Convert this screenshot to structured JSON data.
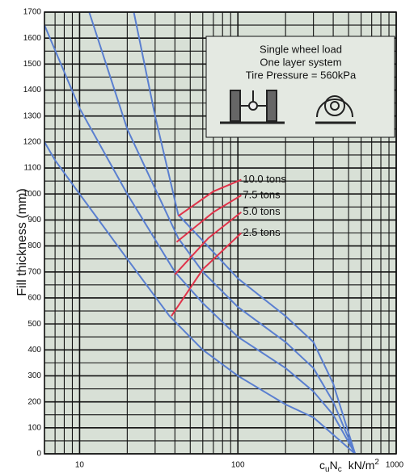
{
  "chart_data": {
    "type": "line",
    "ylabel": "Fill thickness (mm)",
    "xlabel": [
      "c",
      "u",
      "N",
      "c",
      "kN/m",
      "2"
    ],
    "annotation": [
      "Single wheel load",
      "One layer system",
      "Tire Pressure = 560kPa"
    ],
    "log_x": true,
    "xlim": [
      6,
      1000
    ],
    "ylim": [
      0,
      1700
    ],
    "xticks": [
      10,
      100,
      1000
    ],
    "xgrid": [
      6,
      7,
      8,
      9,
      20,
      30,
      40,
      50,
      60,
      70,
      80,
      90,
      200,
      300,
      400,
      500,
      600,
      700,
      800,
      900
    ],
    "yticks": [
      0,
      100,
      200,
      300,
      400,
      500,
      600,
      700,
      800,
      900,
      1000,
      1100,
      1200,
      1300,
      1400,
      1500,
      1600,
      1700
    ],
    "ygrid": [
      50,
      150,
      250,
      350,
      450,
      550,
      650,
      750,
      850,
      950,
      1050,
      1150,
      1250,
      1350,
      1450,
      1550,
      1650
    ],
    "grid": true,
    "series": [
      {
        "name": "10.0 tons",
        "color": "#5a7fd0",
        "x": [
          22,
          30,
          42,
          60,
          100,
          200,
          300,
          400,
          550
        ],
        "y": [
          1700,
          1300,
          920,
          820,
          675,
          530,
          430,
          270,
          0
        ],
        "label_line": {
          "color": "#e0334a",
          "x": [
            42,
            70,
            105
          ],
          "y": [
            915,
            1010,
            1055
          ]
        }
      },
      {
        "name": "7.5 tons",
        "color": "#5a7fd0",
        "x": [
          11.5,
          20,
          42,
          60,
          100,
          200,
          300,
          400,
          550
        ],
        "y": [
          1700,
          1250,
          830,
          700,
          565,
          430,
          330,
          200,
          0
        ],
        "label_line": {
          "color": "#e0334a",
          "x": [
            41,
            70,
            105
          ],
          "y": [
            815,
            930,
            995
          ]
        }
      },
      {
        "name": "5.0 tons",
        "color": "#5a7fd0",
        "x": [
          6,
          10,
          20,
          40,
          60,
          100,
          200,
          300,
          400,
          550
        ],
        "y": [
          1650,
          1330,
          1000,
          700,
          580,
          450,
          330,
          240,
          150,
          0
        ],
        "label_line": {
          "color": "#e0334a",
          "x": [
            40,
            65,
            105
          ],
          "y": [
            690,
            830,
            930
          ]
        }
      },
      {
        "name": "2.5 tons",
        "color": "#5a7fd0",
        "x": [
          6,
          7,
          10,
          20,
          37,
          60,
          100,
          200,
          300,
          550
        ],
        "y": [
          1200,
          1130,
          1000,
          750,
          530,
          400,
          300,
          190,
          140,
          0
        ],
        "label_line": {
          "color": "#e0334a",
          "x": [
            38,
            60,
            105
          ],
          "y": [
            530,
            710,
            850
          ]
        }
      }
    ]
  }
}
